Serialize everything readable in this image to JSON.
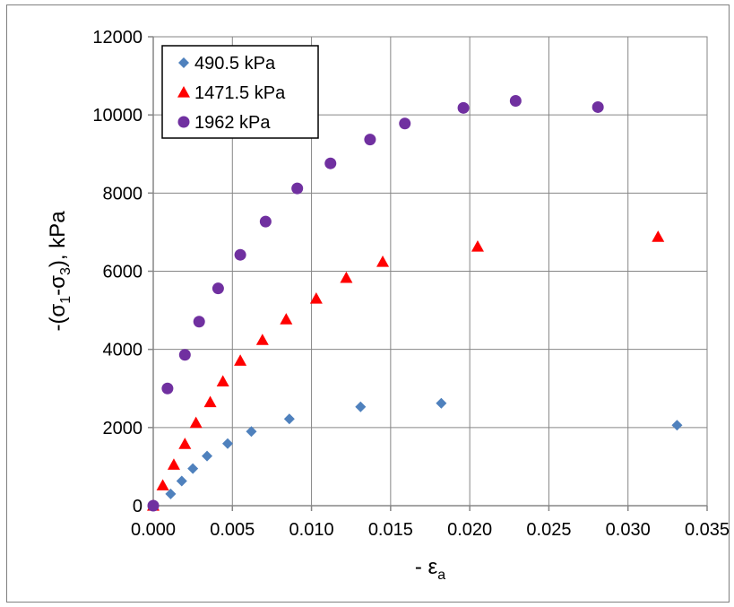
{
  "chart_data": {
    "type": "scatter",
    "title": "",
    "xlabel": {
      "prefix": "- ε",
      "sub": "a"
    },
    "ylabel": {
      "parts": [
        "-(σ",
        "1",
        "-σ",
        "3",
        "), kPa"
      ]
    },
    "xlim": [
      0,
      0.035
    ],
    "ylim": [
      0,
      12000
    ],
    "x_ticks": [
      0,
      0.005,
      0.01,
      0.015,
      0.02,
      0.025,
      0.03,
      0.035
    ],
    "x_tick_labels": [
      "0.000",
      "0.005",
      "0.010",
      "0.015",
      "0.020",
      "0.025",
      "0.030",
      "0.035"
    ],
    "y_ticks": [
      0,
      2000,
      4000,
      6000,
      8000,
      10000,
      12000
    ],
    "y_tick_labels": [
      "0",
      "2000",
      "4000",
      "6000",
      "8000",
      "10000",
      "12000"
    ],
    "grid": true,
    "legend_position": "top-left",
    "series": [
      {
        "name": "490.5 kPa",
        "marker": "diamond",
        "color": "#4f81bd",
        "x": [
          0.0,
          0.0011,
          0.0018,
          0.0025,
          0.0034,
          0.0047,
          0.0062,
          0.0086,
          0.0131,
          0.0182,
          0.0331
        ],
        "y": [
          0,
          300,
          630,
          950,
          1270,
          1590,
          1900,
          2220,
          2530,
          2620,
          2060
        ]
      },
      {
        "name": "1471.5 kPa",
        "marker": "triangle",
        "color": "#ff0000",
        "x": [
          0.0,
          0.0006,
          0.0013,
          0.002,
          0.0027,
          0.0036,
          0.0044,
          0.0055,
          0.0069,
          0.0084,
          0.0103,
          0.0122,
          0.0145,
          0.0205,
          0.0319
        ],
        "y": [
          0,
          520,
          1050,
          1580,
          2120,
          2650,
          3180,
          3710,
          4240,
          4770,
          5300,
          5830,
          6240,
          6630,
          6880
        ]
      },
      {
        "name": "1962 kPa",
        "marker": "circle",
        "color": "#7030a0",
        "x": [
          0.0,
          0.0009,
          0.002,
          0.0029,
          0.0041,
          0.0055,
          0.0071,
          0.0091,
          0.0112,
          0.0137,
          0.0159,
          0.0196,
          0.0229,
          0.0281
        ],
        "y": [
          0,
          3000,
          3860,
          4710,
          5560,
          6420,
          7270,
          8120,
          8760,
          9370,
          9780,
          10180,
          10360,
          10200
        ]
      }
    ]
  }
}
